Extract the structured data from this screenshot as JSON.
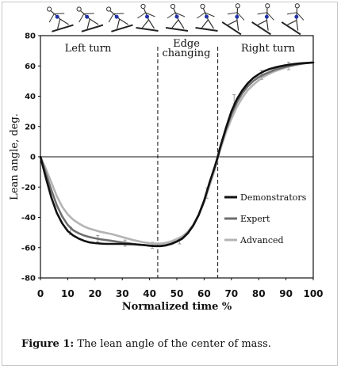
{
  "caption": {
    "label": "Figure 1:",
    "text": " The lean angle of the center of mass."
  },
  "chart_data": {
    "type": "line",
    "title": "",
    "xlabel": "Normalized time %",
    "ylabel": "Lean angle, deg.",
    "xlim": [
      0,
      100
    ],
    "ylim": [
      -80,
      80
    ],
    "x_ticks": [
      0,
      10,
      20,
      30,
      40,
      50,
      60,
      70,
      80,
      90,
      100
    ],
    "y_ticks": [
      80,
      60,
      40,
      20,
      0,
      -20,
      -40,
      -60,
      -80
    ],
    "phase_labels": [
      {
        "text": "Left turn"
      },
      {
        "text": "Edge"
      },
      {
        "text": "changing"
      },
      {
        "text": "Right turn"
      }
    ],
    "vlines": [
      43,
      65
    ],
    "legend_position": "right",
    "series": [
      {
        "name": "Demonstrators",
        "color": "#111111",
        "x": [
          0,
          2,
          4,
          6,
          8,
          10,
          12,
          14,
          16,
          18,
          20,
          22,
          24,
          26,
          28,
          30,
          32,
          34,
          36,
          38,
          40,
          42,
          44,
          46,
          48,
          50,
          52,
          54,
          56,
          58,
          60,
          62,
          64,
          65,
          66,
          68,
          70,
          72,
          74,
          76,
          78,
          80,
          82,
          84,
          86,
          88,
          90,
          92,
          94,
          96,
          98,
          100
        ],
        "y": [
          0,
          -14,
          -27,
          -37,
          -44,
          -49,
          -52,
          -54,
          -55.5,
          -56.5,
          -57,
          -57.3,
          -57.5,
          -57.5,
          -57.5,
          -57.5,
          -57.6,
          -57.8,
          -58,
          -58.3,
          -58.7,
          -59,
          -59,
          -58.5,
          -57.5,
          -56,
          -54,
          -50.5,
          -45.5,
          -38.5,
          -29,
          -17,
          -6,
          0,
          7,
          19,
          30,
          38,
          44,
          48.5,
          52,
          54.5,
          56.5,
          58,
          59,
          59.8,
          60.5,
          61,
          61.5,
          61.8,
          62,
          62.2
        ]
      },
      {
        "name": "Expert",
        "color": "#6e6e6e",
        "x": [
          0,
          2,
          4,
          6,
          8,
          10,
          12,
          14,
          16,
          18,
          20,
          22,
          24,
          26,
          28,
          30,
          32,
          34,
          36,
          38,
          40,
          42,
          44,
          46,
          48,
          50,
          52,
          54,
          56,
          58,
          60,
          62,
          64,
          65,
          66,
          68,
          70,
          72,
          74,
          76,
          78,
          80,
          82,
          84,
          86,
          88,
          90,
          92,
          94,
          96,
          98,
          100
        ],
        "y": [
          0,
          -11,
          -22,
          -32,
          -39.5,
          -45,
          -48.5,
          -50.5,
          -52,
          -53,
          -53.8,
          -54.5,
          -55,
          -55.5,
          -56,
          -56.5,
          -57,
          -57.5,
          -58,
          -58.3,
          -58.6,
          -58.8,
          -58.8,
          -58.3,
          -57.3,
          -55.8,
          -53.8,
          -50.3,
          -45.3,
          -38.3,
          -29,
          -17,
          -6,
          0,
          6.5,
          18,
          28,
          36,
          42,
          46.5,
          50,
          52.5,
          54.5,
          56,
          57.5,
          58.5,
          59.5,
          60.3,
          61,
          61.5,
          62,
          62.3
        ]
      },
      {
        "name": "Advanced",
        "color": "#b4b4b4",
        "x": [
          0,
          2,
          4,
          6,
          8,
          10,
          12,
          14,
          16,
          18,
          20,
          22,
          24,
          26,
          28,
          30,
          32,
          34,
          36,
          38,
          40,
          42,
          44,
          46,
          48,
          50,
          52,
          54,
          56,
          58,
          60,
          62,
          64,
          65,
          66,
          68,
          70,
          72,
          74,
          76,
          78,
          80,
          82,
          84,
          86,
          88,
          90,
          92,
          94,
          96,
          98,
          100
        ],
        "y": [
          0,
          -8,
          -17,
          -26,
          -33,
          -38,
          -41.5,
          -44,
          -46,
          -47.5,
          -48.5,
          -49.5,
          -50.3,
          -51,
          -52,
          -53,
          -54,
          -55,
          -55.8,
          -56.5,
          -57,
          -57.3,
          -57.3,
          -56.8,
          -55.8,
          -54.3,
          -52.5,
          -49.5,
          -45,
          -38.5,
          -30,
          -19,
          -8,
          -1,
          5,
          16,
          25,
          33,
          39,
          44,
          47.5,
          50.5,
          53,
          55,
          56.5,
          57.8,
          59,
          60,
          60.8,
          61.5,
          62,
          62.3
        ]
      }
    ],
    "error_bars": [
      {
        "x": 11,
        "y": -49,
        "err": 2.5
      },
      {
        "x": 21,
        "y": -54,
        "err": 2
      },
      {
        "x": 31,
        "y": -57,
        "err": 2
      },
      {
        "x": 41,
        "y": -58.5,
        "err": 2
      },
      {
        "x": 51,
        "y": -55.5,
        "err": 2
      },
      {
        "x": 61,
        "y": -24,
        "err": 3.5
      },
      {
        "x": 71,
        "y": 38,
        "err": 3
      },
      {
        "x": 81,
        "y": 54,
        "err": 3
      },
      {
        "x": 91,
        "y": 60,
        "err": 2.5
      }
    ],
    "figure_strip": [
      {
        "pose": "left-turn-1"
      },
      {
        "pose": "left-turn-2"
      },
      {
        "pose": "left-turn-3"
      },
      {
        "pose": "edge-change-1"
      },
      {
        "pose": "edge-change-2"
      },
      {
        "pose": "edge-change-3"
      },
      {
        "pose": "right-turn-1"
      },
      {
        "pose": "right-turn-2"
      },
      {
        "pose": "right-turn-3"
      }
    ]
  }
}
